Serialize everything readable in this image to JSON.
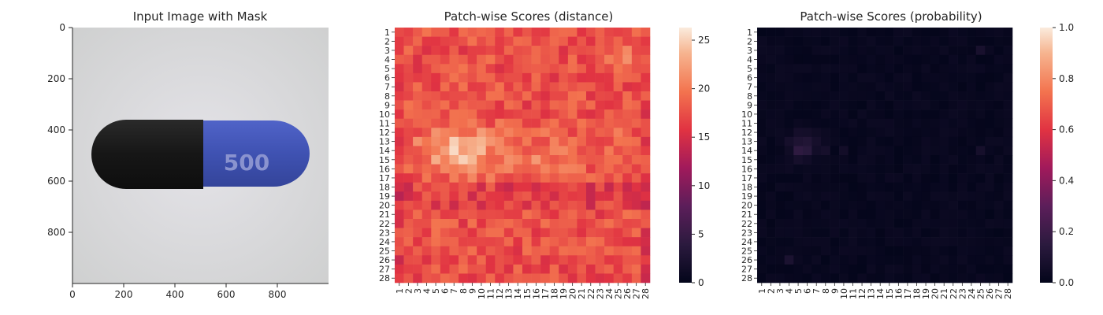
{
  "chart_data": [
    {
      "type": "image",
      "title": "Input Image with Mask",
      "xticks": [
        0,
        200,
        400,
        600,
        800
      ],
      "yticks": [
        0,
        200,
        400,
        600,
        800
      ],
      "xlim": [
        0,
        1000
      ],
      "ylim": [
        1000,
        0
      ],
      "image_content": {
        "background": "light gray",
        "object": "capsule pill",
        "left_half_color": "#1e1e1e",
        "right_half_color": "#4a5fc4",
        "imprint": "500"
      }
    },
    {
      "type": "heatmap",
      "title": "Patch-wise Scores (distance)",
      "rows": 28,
      "cols": 28,
      "row_labels": [
        "1",
        "2",
        "3",
        "4",
        "5",
        "6",
        "7",
        "8",
        "9",
        "10",
        "11",
        "12",
        "13",
        "14",
        "15",
        "16",
        "17",
        "18",
        "19",
        "20",
        "21",
        "22",
        "23",
        "24",
        "25",
        "26",
        "27",
        "28"
      ],
      "col_labels": [
        "1",
        "2",
        "3",
        "4",
        "5",
        "6",
        "7",
        "8",
        "9",
        "10",
        "11",
        "12",
        "13",
        "14",
        "15",
        "16",
        "17",
        "18",
        "19",
        "20",
        "21",
        "22",
        "23",
        "24",
        "25",
        "26",
        "27",
        "28"
      ],
      "colorbar": {
        "min": 0,
        "max": 26.3,
        "ticks": [
          0,
          5,
          10,
          15,
          20,
          25
        ],
        "colormap": "rocket"
      },
      "values_description": "mostly 17-21, high band (22-26) across rows 11-16 cols 3-10, lower (~14-16) cells around rows 17-20"
    },
    {
      "type": "heatmap",
      "title": "Patch-wise Scores (probability)",
      "rows": 28,
      "cols": 28,
      "row_labels": [
        "1",
        "2",
        "3",
        "4",
        "5",
        "6",
        "7",
        "8",
        "9",
        "10",
        "11",
        "12",
        "13",
        "14",
        "15",
        "16",
        "17",
        "18",
        "19",
        "20",
        "21",
        "22",
        "23",
        "24",
        "25",
        "26",
        "27",
        "28"
      ],
      "col_labels": [
        "1",
        "2",
        "3",
        "4",
        "5",
        "6",
        "7",
        "8",
        "9",
        "10",
        "11",
        "12",
        "13",
        "14",
        "15",
        "16",
        "17",
        "18",
        "19",
        "20",
        "21",
        "22",
        "23",
        "24",
        "25",
        "26",
        "27",
        "28"
      ],
      "colorbar": {
        "min": 0.0,
        "max": 1.0,
        "ticks": [
          "0.0",
          "0.2",
          "0.4",
          "0.6",
          "0.8",
          "1.0"
        ],
        "colormap": "rocket"
      },
      "values_description": "nearly all near 0.0, slight elevation (~0.05-0.15) around rows 11-14 cols 3-8"
    }
  ]
}
